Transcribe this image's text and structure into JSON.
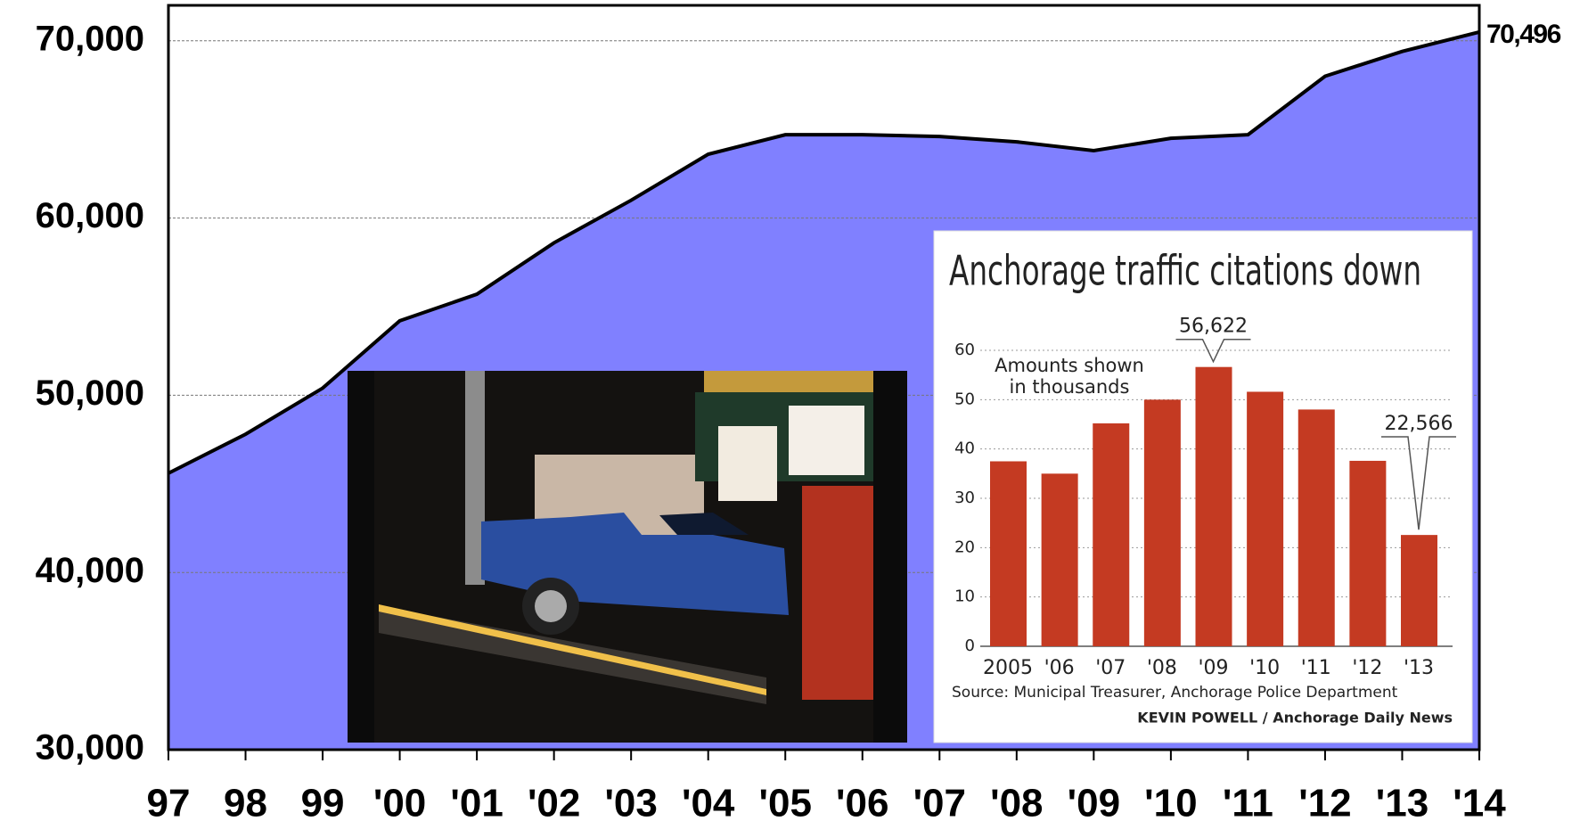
{
  "chart_data": [
    {
      "type": "area",
      "categories": [
        "97",
        "98",
        "99",
        "'00",
        "'01",
        "'02",
        "'03",
        "'04",
        "'05",
        "'06",
        "'07",
        "'08",
        "'09",
        "'10",
        "'11",
        "'12",
        "'13",
        "'14"
      ],
      "values": [
        45600,
        47800,
        50400,
        54200,
        55700,
        58600,
        61000,
        63600,
        64700,
        64700,
        64600,
        64300,
        63800,
        64500,
        64700,
        68000,
        69400,
        70496
      ],
      "value_labels": [
        null,
        null,
        null,
        null,
        null,
        null,
        null,
        null,
        null,
        null,
        null,
        null,
        null,
        null,
        null,
        null,
        null,
        "70,496"
      ],
      "color": "#8080ff",
      "line_color": "#000000",
      "ylim": [
        30000,
        72000
      ],
      "yticks": [
        {
          "value": 30000,
          "label": "30,000"
        },
        {
          "value": 40000,
          "label": "40,000"
        },
        {
          "value": 50000,
          "label": "50,000"
        },
        {
          "value": 60000,
          "label": "60,000"
        },
        {
          "value": 70000,
          "label": "70,000"
        }
      ],
      "grid": true
    },
    {
      "type": "bar",
      "title": "Anchorage traffic citations down",
      "annotation_lines": [
        "Amounts shown",
        "in thousands"
      ],
      "categories": [
        "2005",
        "'06",
        "'07",
        "'08",
        "'09",
        "'10",
        "'11",
        "'12",
        "'13"
      ],
      "values": [
        37.5,
        35,
        45.2,
        50,
        56.622,
        51.6,
        48,
        37.6,
        22.566
      ],
      "value_labels": [
        null,
        null,
        null,
        null,
        "56,622",
        null,
        null,
        null,
        "22,566"
      ],
      "color": "#c43a22",
      "ylim": [
        0,
        62
      ],
      "yticks": [
        0,
        10,
        20,
        30,
        40,
        50,
        60
      ],
      "grid": true,
      "source": "Source: Municipal Treasurer, Anchorage Police Department",
      "credit": "KEVIN POWELL / Anchorage Daily News"
    }
  ]
}
